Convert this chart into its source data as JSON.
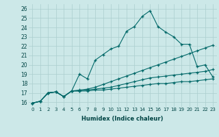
{
  "xlabel": "Humidex (Indice chaleur)",
  "background_color": "#cce8e8",
  "grid_color": "#aacece",
  "line_color": "#006868",
  "xlim": [
    -0.5,
    23.5
  ],
  "ylim": [
    15.5,
    26.5
  ],
  "xticks": [
    0,
    1,
    2,
    3,
    4,
    5,
    6,
    7,
    8,
    9,
    10,
    11,
    12,
    13,
    14,
    15,
    16,
    17,
    18,
    19,
    20,
    21,
    22,
    23
  ],
  "yticks": [
    16,
    17,
    18,
    19,
    20,
    21,
    22,
    23,
    24,
    25,
    26
  ],
  "series": [
    {
      "x": [
        0,
        1,
        2,
        3,
        4,
        5,
        6,
        7,
        8,
        9,
        10,
        11,
        12,
        13,
        14,
        15,
        16,
        17,
        18,
        19,
        20,
        21,
        22,
        23
      ],
      "y": [
        15.9,
        16.1,
        17.0,
        17.1,
        16.6,
        17.2,
        19.0,
        18.5,
        20.5,
        21.1,
        21.7,
        22.0,
        23.6,
        24.1,
        25.2,
        25.8,
        24.1,
        23.5,
        23.0,
        22.2,
        22.2,
        19.8,
        20.0,
        18.7
      ]
    },
    {
      "x": [
        0,
        1,
        2,
        3,
        4,
        5,
        6,
        7,
        8,
        9,
        10,
        11,
        12,
        13,
        14,
        15,
        16,
        17,
        18,
        19,
        20,
        21,
        22,
        23
      ],
      "y": [
        15.9,
        16.1,
        17.0,
        17.1,
        16.6,
        17.2,
        17.3,
        17.4,
        17.6,
        17.9,
        18.2,
        18.5,
        18.8,
        19.1,
        19.4,
        19.7,
        20.0,
        20.3,
        20.6,
        20.9,
        21.2,
        21.5,
        21.8,
        22.1
      ]
    },
    {
      "x": [
        0,
        1,
        2,
        3,
        4,
        5,
        6,
        7,
        8,
        9,
        10,
        11,
        12,
        13,
        14,
        15,
        16,
        17,
        18,
        19,
        20,
        21,
        22,
        23
      ],
      "y": [
        15.9,
        16.1,
        17.0,
        17.1,
        16.6,
        17.2,
        17.2,
        17.3,
        17.4,
        17.5,
        17.6,
        17.8,
        18.0,
        18.2,
        18.4,
        18.6,
        18.7,
        18.8,
        18.9,
        19.0,
        19.1,
        19.2,
        19.3,
        19.5
      ]
    },
    {
      "x": [
        0,
        1,
        2,
        3,
        4,
        5,
        6,
        7,
        8,
        9,
        10,
        11,
        12,
        13,
        14,
        15,
        16,
        17,
        18,
        19,
        20,
        21,
        22,
        23
      ],
      "y": [
        15.9,
        16.1,
        17.0,
        17.1,
        16.6,
        17.2,
        17.2,
        17.2,
        17.3,
        17.3,
        17.4,
        17.5,
        17.6,
        17.7,
        17.8,
        17.9,
        18.0,
        18.0,
        18.1,
        18.2,
        18.2,
        18.3,
        18.4,
        18.5
      ]
    }
  ]
}
